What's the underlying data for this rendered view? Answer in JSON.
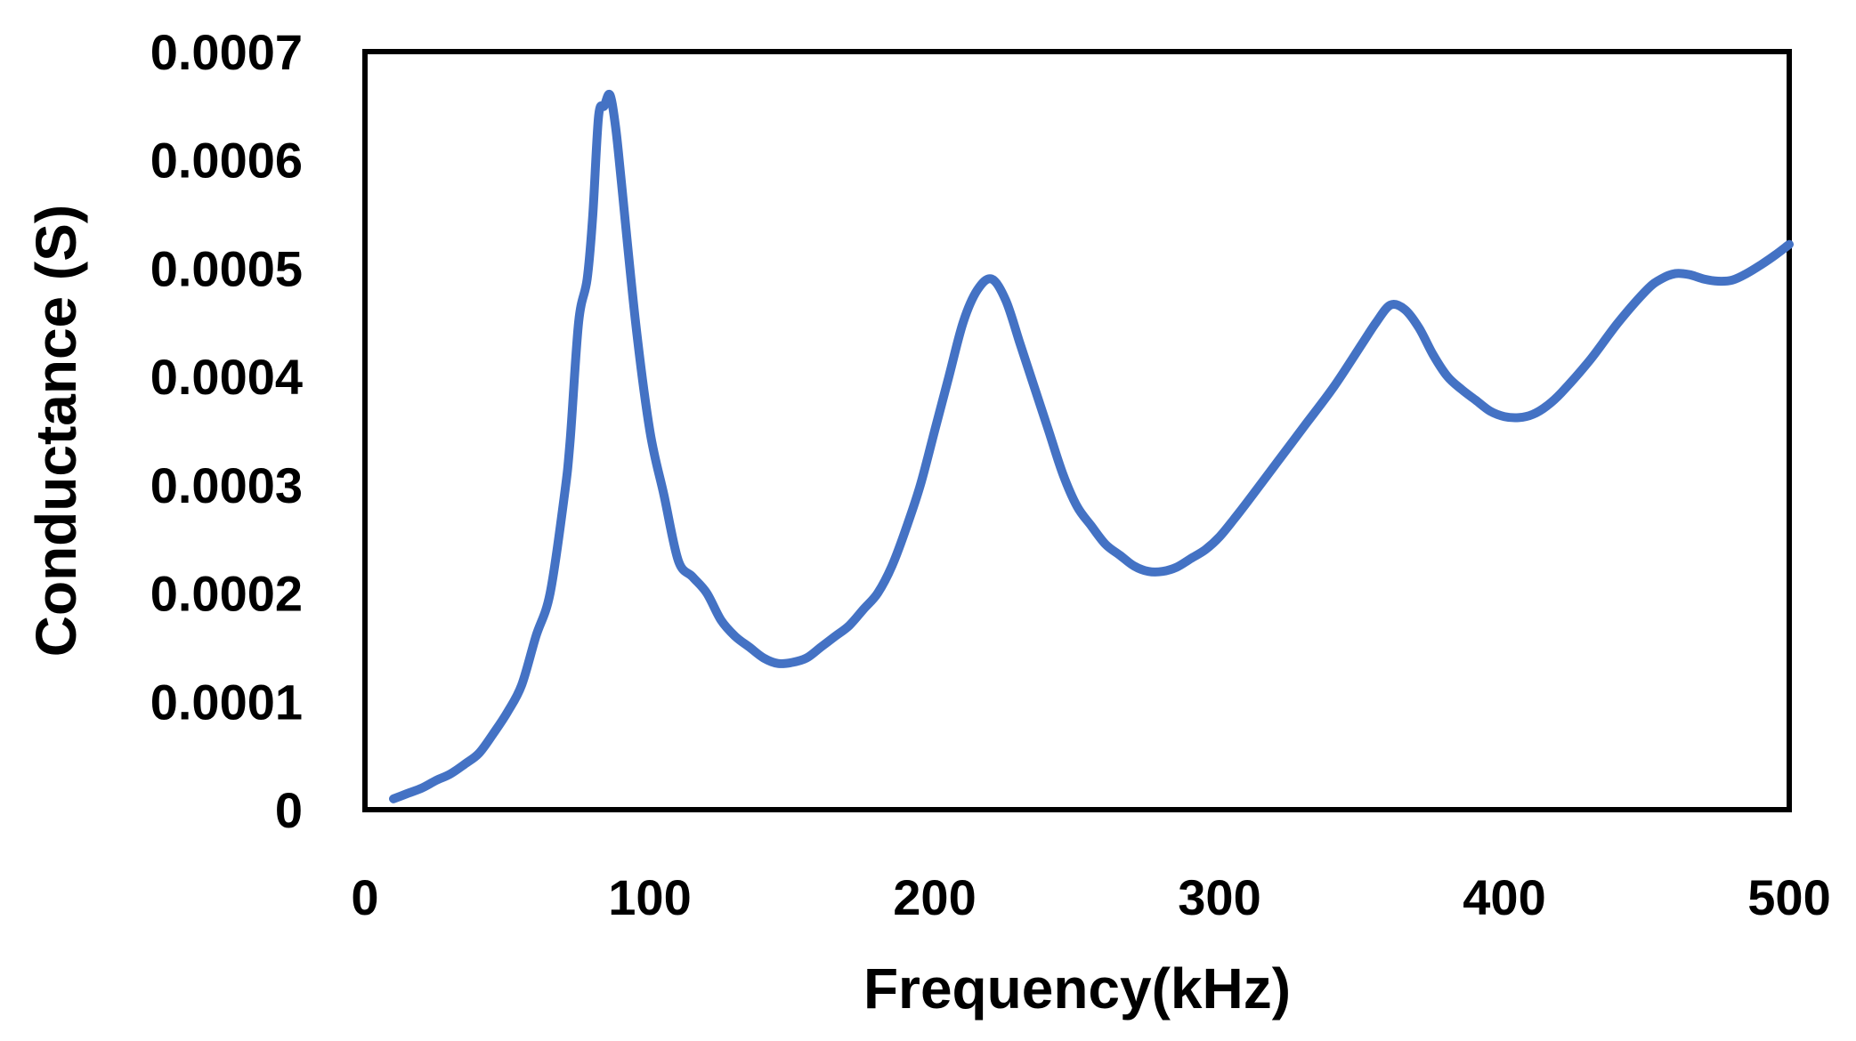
{
  "chart_data": {
    "type": "line",
    "xlabel": "Frequency(kHz)",
    "ylabel": "Conductance (S)",
    "xlim": [
      0,
      500
    ],
    "ylim": [
      0,
      0.0007
    ],
    "xticks": [
      "0",
      "100",
      "200",
      "300",
      "400",
      "500"
    ],
    "yticks": [
      "0",
      "0.0001",
      "0.0002",
      "0.0003",
      "0.0004",
      "0.0005",
      "0.0006",
      "0.0007"
    ],
    "grid": false,
    "legend": "none",
    "series": [
      {
        "color": "#4472C4",
        "x": [
          10,
          15,
          20,
          25,
          30,
          35,
          40,
          45,
          50,
          55,
          60,
          65,
          70,
          72,
          75,
          78,
          80,
          82,
          84,
          86,
          88,
          90,
          95,
          100,
          105,
          110,
          115,
          120,
          125,
          130,
          135,
          140,
          145,
          150,
          155,
          160,
          165,
          170,
          175,
          180,
          185,
          190,
          195,
          200,
          205,
          210,
          215,
          220,
          225,
          230,
          235,
          240,
          245,
          250,
          255,
          260,
          265,
          270,
          275,
          280,
          285,
          290,
          295,
          300,
          305,
          310,
          320,
          330,
          340,
          350,
          355,
          360,
          365,
          370,
          375,
          380,
          385,
          390,
          395,
          400,
          405,
          410,
          415,
          420,
          430,
          440,
          450,
          455,
          460,
          465,
          470,
          475,
          480,
          485,
          490,
          495,
          500
        ],
        "y": [
          1e-05,
          1.5e-05,
          2e-05,
          2.7e-05,
          3.3e-05,
          4.2e-05,
          5.2e-05,
          7e-05,
          9e-05,
          0.000115,
          0.00016,
          0.0002,
          0.00029,
          0.00034,
          0.00045,
          0.00049,
          0.00055,
          0.00064,
          0.00065,
          0.00066,
          0.00063,
          0.00058,
          0.00045,
          0.00035,
          0.00029,
          0.00023,
          0.000215,
          0.0002,
          0.000175,
          0.00016,
          0.00015,
          0.00014,
          0.000135,
          0.000136,
          0.00014,
          0.00015,
          0.00016,
          0.00017,
          0.000185,
          0.0002,
          0.000225,
          0.00026,
          0.0003,
          0.00035,
          0.0004,
          0.00045,
          0.00048,
          0.00049,
          0.00047,
          0.00043,
          0.00039,
          0.00035,
          0.00031,
          0.00028,
          0.000262,
          0.000245,
          0.000235,
          0.000225,
          0.00022,
          0.00022,
          0.000224,
          0.000232,
          0.00024,
          0.000252,
          0.000268,
          0.000285,
          0.00032,
          0.000355,
          0.00039,
          0.00043,
          0.00045,
          0.000466,
          0.000462,
          0.000445,
          0.00042,
          0.0004,
          0.000388,
          0.000378,
          0.000368,
          0.000363,
          0.000362,
          0.000365,
          0.000373,
          0.000385,
          0.000415,
          0.00045,
          0.00048,
          0.00049,
          0.000495,
          0.000494,
          0.00049,
          0.000488,
          0.000489,
          0.000495,
          0.000503,
          0.000512,
          0.000522
        ]
      }
    ]
  }
}
